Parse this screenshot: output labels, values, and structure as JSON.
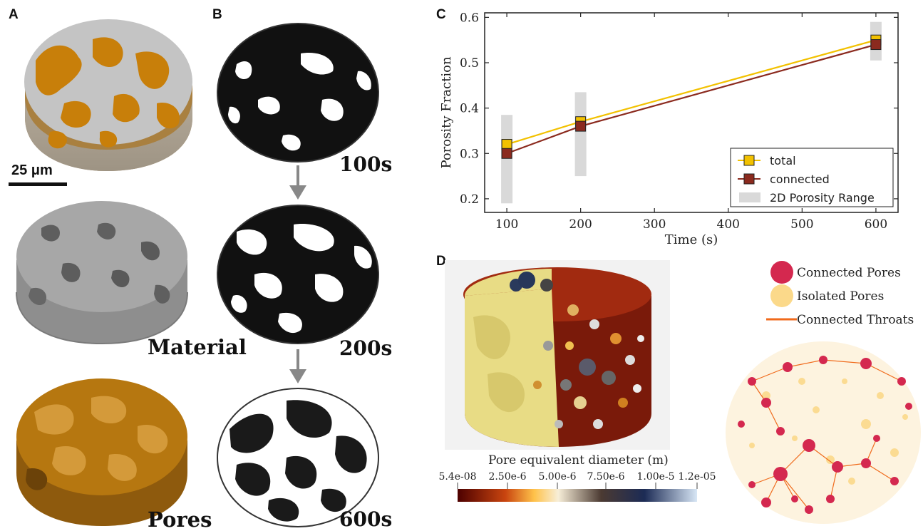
{
  "panels": {
    "a": "A",
    "b": "B",
    "c": "C",
    "d": "D"
  },
  "panel_a": {
    "scale_bar": "25 μm",
    "label_material": "Material",
    "label_pores": "Pores"
  },
  "panel_b": {
    "times": [
      "100s",
      "200s",
      "600s"
    ]
  },
  "chart_data": {
    "type": "line",
    "xlabel": "Time (s)",
    "ylabel": "Porosity Fraction",
    "xlim": [
      70,
      630
    ],
    "ylim": [
      0.17,
      0.61
    ],
    "xticks": [
      100,
      200,
      300,
      400,
      500,
      600
    ],
    "yticks": [
      0.2,
      0.3,
      0.4,
      0.5,
      0.6
    ],
    "x": [
      100,
      200,
      600
    ],
    "series": [
      {
        "name": "total",
        "values": [
          0.32,
          0.37,
          0.55
        ],
        "color": "#f2c100"
      },
      {
        "name": "connected",
        "values": [
          0.3,
          0.36,
          0.54
        ],
        "color": "#8b2a1e"
      }
    ],
    "ranges": {
      "name": "2D Porosity Range",
      "lows": [
        0.19,
        0.25,
        0.505
      ],
      "highs": [
        0.385,
        0.435,
        0.59
      ],
      "color": "#d9d9d9"
    },
    "legend_position": "bottom-right",
    "grid": false
  },
  "panel_d": {
    "colorbar_title": "Pore equivalent diameter (m)",
    "colorbar_ticks": [
      "5.4e-08",
      "2.50e-6",
      "5.00e-6",
      "7.50e-6",
      "1.00e-5",
      "1.2e-05"
    ],
    "legend": [
      {
        "label": "Connected Pores",
        "color": "#d4284f"
      },
      {
        "label": "Isolated Pores",
        "color": "#fbd98a"
      },
      {
        "label": "Connected Throats",
        "color": "#f06a1b"
      }
    ]
  }
}
